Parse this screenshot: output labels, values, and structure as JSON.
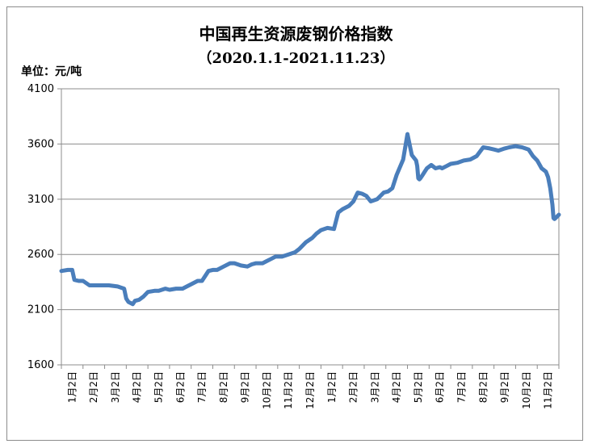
{
  "chart_data": {
    "type": "line",
    "title": "中国再生资源废钢价格指数",
    "subtitle": "（2020.1.1-2021.11.23）",
    "unit_label": "单位：元/吨",
    "xlabel": "",
    "ylabel": "",
    "ylim": [
      1600,
      4100
    ],
    "yticks": [
      "1600",
      "2100",
      "2600",
      "3100",
      "3600",
      "4100"
    ],
    "ytick_values": [
      1600,
      2100,
      2600,
      3100,
      3600,
      4100
    ],
    "xticks": [
      "1月2日",
      "2月2日",
      "3月2日",
      "4月2日",
      "5月2日",
      "6月2日",
      "7月2日",
      "8月2日",
      "9月2日",
      "10月2日",
      "11月2日",
      "12月2日",
      "1月2日",
      "2月2日",
      "3月2日",
      "4月2日",
      "5月2日",
      "6月2日",
      "7月2日",
      "8月2日",
      "9月2日",
      "10月2日",
      "11月2日"
    ],
    "grid": true,
    "legend": "none",
    "line_color": "#4a7ebb",
    "series": [
      {
        "x": [
          0,
          0.3,
          0.5,
          0.6,
          0.8,
          1.0,
          1.3,
          1.5,
          1.8,
          2.2,
          2.6,
          2.9,
          3.0,
          3.1,
          3.2,
          3.3,
          3.4,
          3.6,
          3.8,
          4.0,
          4.3,
          4.5,
          4.8,
          5.0,
          5.3,
          5.6,
          5.8,
          6.0,
          6.3,
          6.5,
          6.8,
          7.0,
          7.2,
          7.5,
          7.8,
          8.0,
          8.3,
          8.6,
          8.8,
          9.0,
          9.3,
          9.5,
          9.7,
          9.9,
          10.2,
          10.5,
          10.8,
          11.0,
          11.3,
          11.6,
          11.8,
          12.0,
          12.3,
          12.6,
          12.8,
          13.0,
          13.3,
          13.5,
          13.7,
          13.9,
          14.1,
          14.3,
          14.6,
          14.9,
          15.1,
          15.3,
          15.5,
          15.8,
          16.0,
          16.2,
          16.4,
          16.45,
          16.5,
          16.55,
          16.6,
          16.7,
          16.8,
          16.9,
          17.1,
          17.3,
          17.5,
          17.6,
          17.8,
          18.0,
          18.3,
          18.6,
          18.9,
          19.2,
          19.5,
          19.8,
          20.0,
          20.2,
          20.5,
          20.7,
          21.0,
          21.3,
          21.6,
          21.8,
          22.0,
          22.2,
          22.4,
          22.5,
          22.6,
          22.7,
          22.75,
          22.8,
          22.9,
          23.0
        ],
        "values": [
          2450,
          2460,
          2460,
          2370,
          2360,
          2360,
          2320,
          2320,
          2320,
          2320,
          2310,
          2290,
          2200,
          2170,
          2160,
          2150,
          2180,
          2190,
          2220,
          2260,
          2270,
          2270,
          2290,
          2280,
          2290,
          2290,
          2310,
          2330,
          2360,
          2360,
          2450,
          2460,
          2460,
          2490,
          2520,
          2520,
          2500,
          2490,
          2510,
          2520,
          2520,
          2540,
          2560,
          2580,
          2580,
          2600,
          2620,
          2650,
          2710,
          2750,
          2790,
          2820,
          2840,
          2830,
          2980,
          3010,
          3040,
          3080,
          3160,
          3150,
          3130,
          3080,
          3100,
          3160,
          3170,
          3200,
          3320,
          3460,
          3690,
          3500,
          3450,
          3400,
          3290,
          3280,
          3290,
          3320,
          3350,
          3380,
          3410,
          3380,
          3390,
          3380,
          3400,
          3420,
          3430,
          3450,
          3460,
          3490,
          3570,
          3560,
          3550,
          3540,
          3560,
          3570,
          3580,
          3570,
          3550,
          3490,
          3450,
          3380,
          3350,
          3300,
          3200,
          3050,
          2930,
          2920,
          2940,
          2960
        ]
      }
    ]
  }
}
